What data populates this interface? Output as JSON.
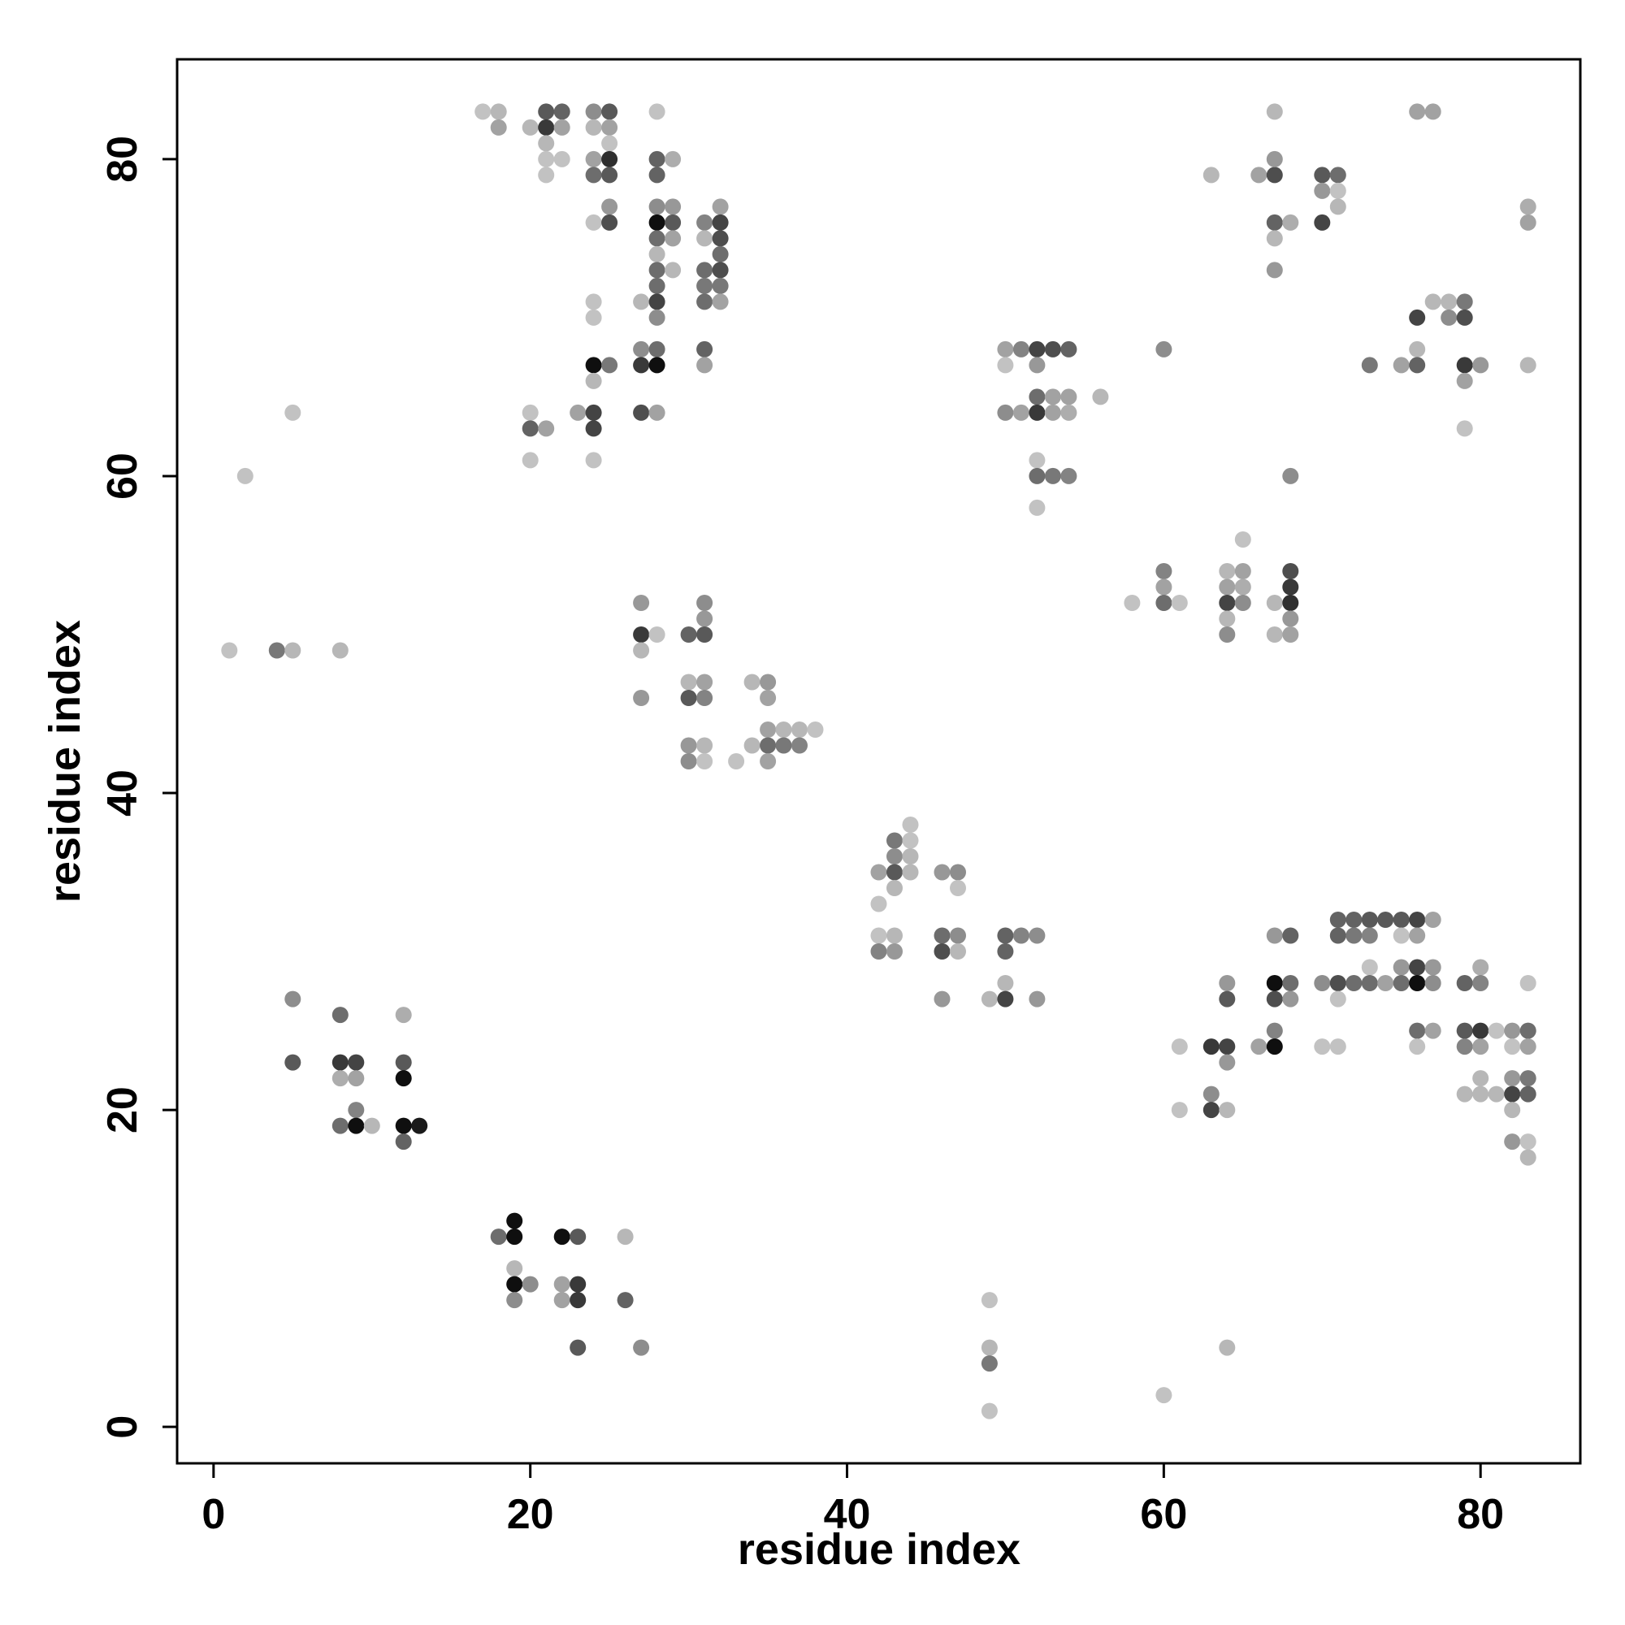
{
  "chart_data": {
    "type": "scatter",
    "title": "",
    "xlabel": "residue index",
    "ylabel": "residue index",
    "xlim": [
      -2.3,
      86.3
    ],
    "ylim": [
      -2.3,
      86.3
    ],
    "xticks": [
      0,
      20,
      40,
      60,
      80
    ],
    "yticks": [
      0,
      20,
      40,
      60,
      80
    ],
    "grid": false,
    "legend": "none",
    "colors": {
      "marker_shades": [
        "#dddddd",
        "#bbbbbb",
        "#999999",
        "#666666",
        "#111111"
      ]
    },
    "points": [
      [
        1,
        49,
        0.15
      ],
      [
        2,
        60,
        0.15
      ],
      [
        4,
        49,
        0.5
      ],
      [
        5,
        49,
        0.2
      ],
      [
        5,
        64,
        0.15
      ],
      [
        8,
        49,
        0.2
      ],
      [
        5,
        27,
        0.4
      ],
      [
        5,
        23,
        0.65
      ],
      [
        8,
        26,
        0.55
      ],
      [
        8,
        23,
        0.8
      ],
      [
        9,
        23,
        0.75
      ],
      [
        8,
        22,
        0.25
      ],
      [
        9,
        22,
        0.3
      ],
      [
        9,
        20,
        0.45
      ],
      [
        8,
        19,
        0.55
      ],
      [
        9,
        19,
        1.0
      ],
      [
        10,
        19,
        0.2
      ],
      [
        12,
        26,
        0.25
      ],
      [
        12,
        23,
        0.65
      ],
      [
        12,
        22,
        1.0
      ],
      [
        12,
        19,
        1.0
      ],
      [
        13,
        19,
        0.95
      ],
      [
        12,
        18,
        0.6
      ],
      [
        17,
        83,
        0.15
      ],
      [
        18,
        83,
        0.2
      ],
      [
        18,
        82,
        0.3
      ],
      [
        20,
        82,
        0.2
      ],
      [
        21,
        83,
        0.65
      ],
      [
        22,
        83,
        0.6
      ],
      [
        21,
        82,
        0.8
      ],
      [
        22,
        82,
        0.3
      ],
      [
        21,
        81,
        0.2
      ],
      [
        21,
        80,
        0.15
      ],
      [
        22,
        80,
        0.15
      ],
      [
        21,
        79,
        0.15
      ],
      [
        24,
        83,
        0.4
      ],
      [
        25,
        83,
        0.65
      ],
      [
        24,
        82,
        0.2
      ],
      [
        25,
        82,
        0.3
      ],
      [
        25,
        81,
        0.15
      ],
      [
        24,
        80,
        0.3
      ],
      [
        25,
        80,
        0.85
      ],
      [
        24,
        79,
        0.55
      ],
      [
        25,
        79,
        0.65
      ],
      [
        25,
        77,
        0.35
      ],
      [
        24,
        76,
        0.15
      ],
      [
        25,
        76,
        0.7
      ],
      [
        28,
        83,
        0.15
      ],
      [
        28,
        80,
        0.6
      ],
      [
        29,
        80,
        0.25
      ],
      [
        28,
        79,
        0.6
      ],
      [
        28,
        77,
        0.4
      ],
      [
        29,
        77,
        0.35
      ],
      [
        28,
        76,
        1.0
      ],
      [
        29,
        76,
        0.65
      ],
      [
        28,
        75,
        0.55
      ],
      [
        29,
        75,
        0.3
      ],
      [
        28,
        74,
        0.2
      ],
      [
        28,
        73,
        0.55
      ],
      [
        29,
        73,
        0.2
      ],
      [
        28,
        72,
        0.55
      ],
      [
        27,
        71,
        0.2
      ],
      [
        28,
        71,
        0.75
      ],
      [
        28,
        70,
        0.4
      ],
      [
        31,
        76,
        0.45
      ],
      [
        32,
        77,
        0.3
      ],
      [
        32,
        76,
        0.75
      ],
      [
        31,
        75,
        0.2
      ],
      [
        32,
        75,
        0.7
      ],
      [
        32,
        74,
        0.55
      ],
      [
        31,
        73,
        0.55
      ],
      [
        32,
        73,
        0.7
      ],
      [
        31,
        72,
        0.5
      ],
      [
        32,
        72,
        0.5
      ],
      [
        31,
        71,
        0.55
      ],
      [
        32,
        71,
        0.3
      ],
      [
        24,
        71,
        0.15
      ],
      [
        24,
        70,
        0.15
      ],
      [
        27,
        68,
        0.4
      ],
      [
        28,
        68,
        0.55
      ],
      [
        31,
        68,
        0.6
      ],
      [
        24,
        67,
        1.0
      ],
      [
        25,
        67,
        0.5
      ],
      [
        27,
        67,
        0.8
      ],
      [
        28,
        67,
        1.0
      ],
      [
        31,
        67,
        0.3
      ],
      [
        24,
        66,
        0.2
      ],
      [
        20,
        64,
        0.15
      ],
      [
        20,
        63,
        0.6
      ],
      [
        21,
        63,
        0.3
      ],
      [
        23,
        64,
        0.3
      ],
      [
        24,
        64,
        0.75
      ],
      [
        24,
        63,
        0.75
      ],
      [
        27,
        64,
        0.7
      ],
      [
        28,
        64,
        0.3
      ],
      [
        20,
        61,
        0.15
      ],
      [
        24,
        61,
        0.15
      ],
      [
        27,
        52,
        0.35
      ],
      [
        31,
        52,
        0.4
      ],
      [
        31,
        51,
        0.35
      ],
      [
        27,
        50,
        0.8
      ],
      [
        28,
        50,
        0.15
      ],
      [
        30,
        50,
        0.6
      ],
      [
        31,
        50,
        0.65
      ],
      [
        27,
        49,
        0.2
      ],
      [
        30,
        47,
        0.2
      ],
      [
        31,
        47,
        0.3
      ],
      [
        34,
        47,
        0.2
      ],
      [
        35,
        47,
        0.35
      ],
      [
        27,
        46,
        0.35
      ],
      [
        30,
        46,
        0.65
      ],
      [
        31,
        46,
        0.45
      ],
      [
        35,
        46,
        0.3
      ],
      [
        35,
        44,
        0.3
      ],
      [
        36,
        44,
        0.2
      ],
      [
        37,
        44,
        0.2
      ],
      [
        38,
        44,
        0.15
      ],
      [
        30,
        43,
        0.35
      ],
      [
        31,
        43,
        0.2
      ],
      [
        34,
        43,
        0.2
      ],
      [
        35,
        43,
        0.55
      ],
      [
        36,
        43,
        0.5
      ],
      [
        37,
        43,
        0.45
      ],
      [
        30,
        42,
        0.4
      ],
      [
        31,
        42,
        0.15
      ],
      [
        33,
        42,
        0.15
      ],
      [
        35,
        42,
        0.3
      ],
      [
        44,
        38,
        0.15
      ],
      [
        43,
        37,
        0.5
      ],
      [
        44,
        37,
        0.15
      ],
      [
        43,
        36,
        0.4
      ],
      [
        44,
        36,
        0.2
      ],
      [
        42,
        35,
        0.3
      ],
      [
        43,
        35,
        0.65
      ],
      [
        44,
        35,
        0.2
      ],
      [
        46,
        35,
        0.35
      ],
      [
        47,
        35,
        0.4
      ],
      [
        43,
        34,
        0.2
      ],
      [
        47,
        34,
        0.15
      ],
      [
        42,
        33,
        0.15
      ],
      [
        42,
        31,
        0.15
      ],
      [
        43,
        31,
        0.2
      ],
      [
        46,
        31,
        0.55
      ],
      [
        47,
        31,
        0.4
      ],
      [
        50,
        31,
        0.6
      ],
      [
        51,
        31,
        0.45
      ],
      [
        52,
        31,
        0.4
      ],
      [
        42,
        30,
        0.45
      ],
      [
        43,
        30,
        0.35
      ],
      [
        46,
        30,
        0.7
      ],
      [
        47,
        30,
        0.2
      ],
      [
        50,
        30,
        0.6
      ],
      [
        50,
        28,
        0.2
      ],
      [
        46,
        27,
        0.35
      ],
      [
        49,
        27,
        0.2
      ],
      [
        50,
        27,
        0.75
      ],
      [
        52,
        27,
        0.35
      ],
      [
        19,
        13,
        1.0
      ],
      [
        18,
        12,
        0.55
      ],
      [
        19,
        12,
        1.0
      ],
      [
        22,
        12,
        1.0
      ],
      [
        23,
        12,
        0.65
      ],
      [
        26,
        12,
        0.2
      ],
      [
        19,
        10,
        0.2
      ],
      [
        19,
        9,
        1.0
      ],
      [
        20,
        9,
        0.4
      ],
      [
        22,
        9,
        0.3
      ],
      [
        23,
        9,
        0.8
      ],
      [
        19,
        8,
        0.4
      ],
      [
        22,
        8,
        0.3
      ],
      [
        23,
        8,
        0.8
      ],
      [
        26,
        8,
        0.6
      ],
      [
        23,
        5,
        0.65
      ],
      [
        27,
        5,
        0.4
      ],
      [
        49,
        8,
        0.15
      ],
      [
        49,
        5,
        0.2
      ],
      [
        49,
        4,
        0.5
      ],
      [
        49,
        1,
        0.15
      ],
      [
        60,
        2,
        0.15
      ],
      [
        64,
        5,
        0.2
      ],
      [
        50,
        68,
        0.3
      ],
      [
        51,
        68,
        0.45
      ],
      [
        52,
        68,
        0.75
      ],
      [
        53,
        68,
        0.7
      ],
      [
        54,
        68,
        0.6
      ],
      [
        50,
        67,
        0.15
      ],
      [
        52,
        67,
        0.35
      ],
      [
        52,
        65,
        0.55
      ],
      [
        53,
        65,
        0.3
      ],
      [
        54,
        65,
        0.3
      ],
      [
        56,
        65,
        0.2
      ],
      [
        50,
        64,
        0.4
      ],
      [
        51,
        64,
        0.3
      ],
      [
        52,
        64,
        0.8
      ],
      [
        53,
        64,
        0.3
      ],
      [
        54,
        64,
        0.25
      ],
      [
        52,
        61,
        0.15
      ],
      [
        52,
        60,
        0.55
      ],
      [
        53,
        60,
        0.5
      ],
      [
        54,
        60,
        0.45
      ],
      [
        52,
        58,
        0.15
      ],
      [
        60,
        68,
        0.4
      ],
      [
        65,
        56,
        0.15
      ],
      [
        60,
        54,
        0.45
      ],
      [
        64,
        54,
        0.2
      ],
      [
        65,
        54,
        0.3
      ],
      [
        68,
        54,
        0.7
      ],
      [
        60,
        53,
        0.3
      ],
      [
        64,
        53,
        0.3
      ],
      [
        65,
        53,
        0.25
      ],
      [
        68,
        53,
        0.8
      ],
      [
        58,
        52,
        0.15
      ],
      [
        60,
        52,
        0.55
      ],
      [
        61,
        52,
        0.15
      ],
      [
        64,
        52,
        0.75
      ],
      [
        65,
        52,
        0.4
      ],
      [
        67,
        52,
        0.2
      ],
      [
        68,
        52,
        0.85
      ],
      [
        64,
        51,
        0.2
      ],
      [
        68,
        51,
        0.35
      ],
      [
        64,
        50,
        0.4
      ],
      [
        67,
        50,
        0.2
      ],
      [
        68,
        50,
        0.3
      ],
      [
        68,
        60,
        0.4
      ],
      [
        63,
        79,
        0.2
      ],
      [
        66,
        79,
        0.3
      ],
      [
        67,
        79,
        0.7
      ],
      [
        67,
        83,
        0.2
      ],
      [
        67,
        80,
        0.35
      ],
      [
        70,
        79,
        0.65
      ],
      [
        71,
        79,
        0.55
      ],
      [
        70,
        78,
        0.35
      ],
      [
        71,
        78,
        0.15
      ],
      [
        71,
        77,
        0.2
      ],
      [
        67,
        76,
        0.6
      ],
      [
        68,
        76,
        0.25
      ],
      [
        70,
        76,
        0.75
      ],
      [
        67,
        75,
        0.2
      ],
      [
        67,
        73,
        0.35
      ],
      [
        76,
        83,
        0.3
      ],
      [
        77,
        83,
        0.3
      ],
      [
        76,
        70,
        0.75
      ],
      [
        77,
        71,
        0.2
      ],
      [
        78,
        71,
        0.2
      ],
      [
        79,
        71,
        0.5
      ],
      [
        78,
        70,
        0.4
      ],
      [
        79,
        70,
        0.7
      ],
      [
        76,
        68,
        0.2
      ],
      [
        73,
        67,
        0.5
      ],
      [
        75,
        67,
        0.3
      ],
      [
        76,
        67,
        0.6
      ],
      [
        79,
        67,
        0.8
      ],
      [
        80,
        67,
        0.35
      ],
      [
        79,
        66,
        0.3
      ],
      [
        79,
        63,
        0.15
      ],
      [
        83,
        77,
        0.25
      ],
      [
        83,
        76,
        0.3
      ],
      [
        83,
        67,
        0.2
      ],
      [
        71,
        32,
        0.6
      ],
      [
        72,
        32,
        0.6
      ],
      [
        73,
        32,
        0.65
      ],
      [
        74,
        32,
        0.65
      ],
      [
        75,
        32,
        0.65
      ],
      [
        76,
        32,
        0.75
      ],
      [
        77,
        32,
        0.3
      ],
      [
        71,
        31,
        0.6
      ],
      [
        72,
        31,
        0.5
      ],
      [
        73,
        31,
        0.45
      ],
      [
        75,
        31,
        0.15
      ],
      [
        76,
        31,
        0.3
      ],
      [
        67,
        31,
        0.35
      ],
      [
        68,
        31,
        0.6
      ],
      [
        73,
        29,
        0.15
      ],
      [
        75,
        29,
        0.35
      ],
      [
        76,
        29,
        0.75
      ],
      [
        77,
        29,
        0.35
      ],
      [
        80,
        29,
        0.25
      ],
      [
        70,
        28,
        0.4
      ],
      [
        71,
        28,
        0.7
      ],
      [
        72,
        28,
        0.55
      ],
      [
        73,
        28,
        0.55
      ],
      [
        74,
        28,
        0.3
      ],
      [
        75,
        28,
        0.55
      ],
      [
        76,
        28,
        1.0
      ],
      [
        77,
        28,
        0.4
      ],
      [
        79,
        28,
        0.6
      ],
      [
        80,
        28,
        0.45
      ],
      [
        83,
        28,
        0.15
      ],
      [
        64,
        28,
        0.35
      ],
      [
        67,
        28,
        1.0
      ],
      [
        68,
        28,
        0.55
      ],
      [
        64,
        27,
        0.65
      ],
      [
        67,
        27,
        0.7
      ],
      [
        68,
        27,
        0.35
      ],
      [
        71,
        27,
        0.15
      ],
      [
        67,
        25,
        0.45
      ],
      [
        76,
        25,
        0.55
      ],
      [
        77,
        25,
        0.3
      ],
      [
        79,
        25,
        0.65
      ],
      [
        80,
        25,
        0.8
      ],
      [
        81,
        25,
        0.15
      ],
      [
        82,
        25,
        0.35
      ],
      [
        83,
        25,
        0.55
      ],
      [
        61,
        24,
        0.15
      ],
      [
        63,
        24,
        0.8
      ],
      [
        64,
        24,
        0.75
      ],
      [
        66,
        24,
        0.3
      ],
      [
        67,
        24,
        1.0
      ],
      [
        70,
        24,
        0.15
      ],
      [
        71,
        24,
        0.15
      ],
      [
        76,
        24,
        0.15
      ],
      [
        79,
        24,
        0.45
      ],
      [
        80,
        24,
        0.3
      ],
      [
        82,
        24,
        0.15
      ],
      [
        83,
        24,
        0.3
      ],
      [
        64,
        23,
        0.35
      ],
      [
        80,
        22,
        0.2
      ],
      [
        82,
        22,
        0.35
      ],
      [
        83,
        22,
        0.5
      ],
      [
        63,
        21,
        0.4
      ],
      [
        79,
        21,
        0.2
      ],
      [
        80,
        21,
        0.2
      ],
      [
        81,
        21,
        0.2
      ],
      [
        82,
        21,
        0.75
      ],
      [
        83,
        21,
        0.6
      ],
      [
        61,
        20,
        0.15
      ],
      [
        63,
        20,
        0.75
      ],
      [
        64,
        20,
        0.2
      ],
      [
        82,
        20,
        0.2
      ],
      [
        82,
        18,
        0.35
      ],
      [
        83,
        18,
        0.15
      ],
      [
        83,
        17,
        0.2
      ]
    ]
  }
}
